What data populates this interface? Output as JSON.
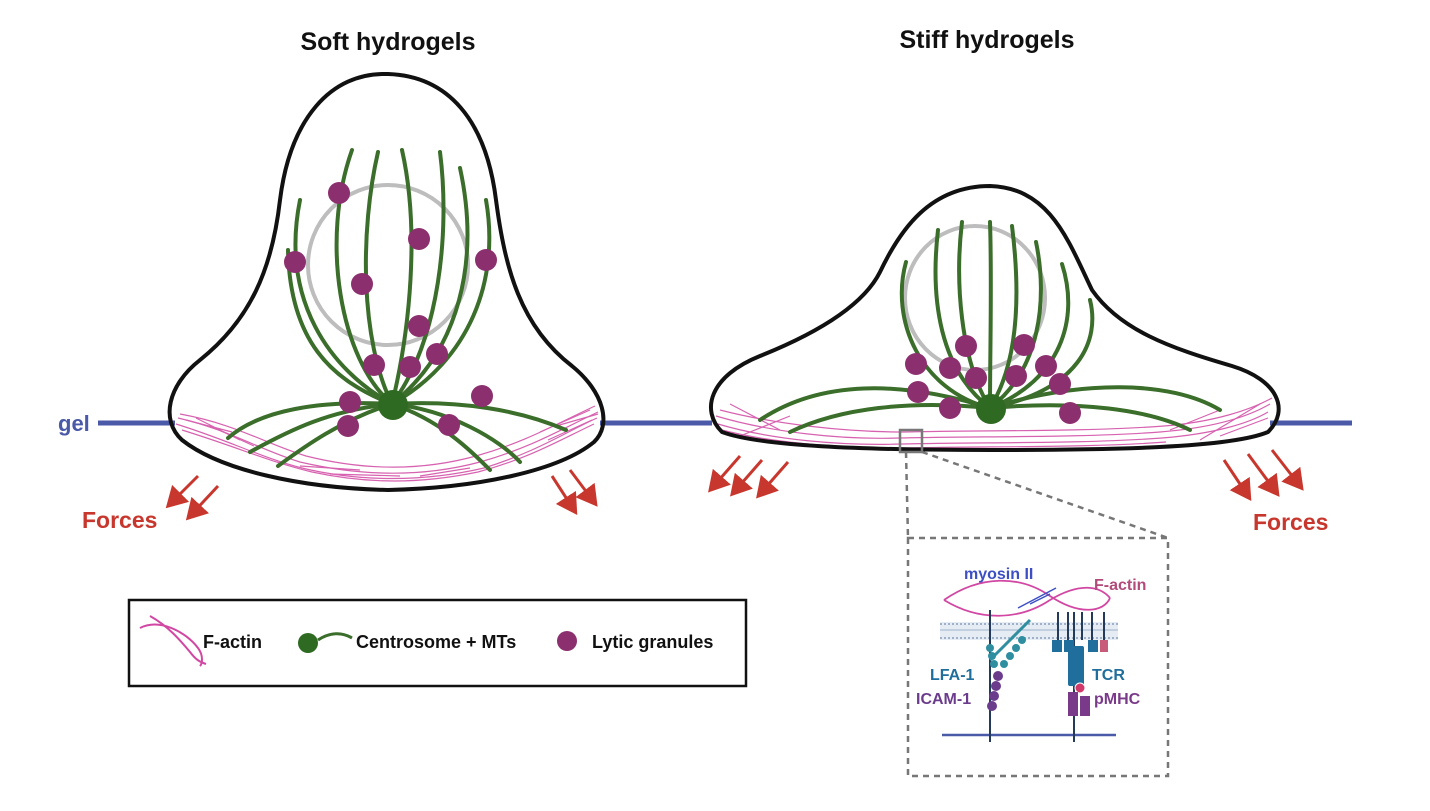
{
  "panels": {
    "left_title": "Soft hydrogels",
    "right_title": "Stiff hydrogels"
  },
  "labels": {
    "gel": "gel",
    "forces_left": "Forces",
    "forces_right": "Forces"
  },
  "legend": {
    "f_actin": "F-actin",
    "centrosome": "Centrosome + MTs",
    "granules": "Lytic granules"
  },
  "inset": {
    "myosin": "myosin II",
    "f_actin": "F-actin",
    "lfa1": "LFA-1",
    "icam1": "ICAM-1",
    "tcr": "TCR",
    "pmhc": "pMHC"
  },
  "colors": {
    "membrane": "#111111",
    "microtubule": "#3a6e2a",
    "granule": "#8c2f6e",
    "actin": "#d147a3",
    "nucleus": "#bdbdbd",
    "gel_line": "#4a5aa8",
    "force_arrow": "#c8372d",
    "myosin_label": "#3d4fc4",
    "lfa1": "#2f8fa0",
    "icam1": "#6b3c8c",
    "tcr": "#1f6e9c",
    "pmhc": "#7a3a8a"
  }
}
